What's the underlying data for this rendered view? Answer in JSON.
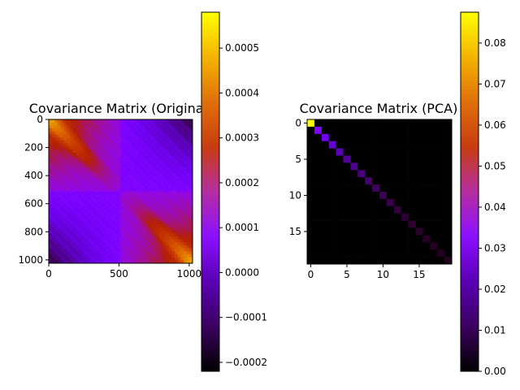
{
  "chart_data": [
    {
      "type": "heatmap",
      "title": "Covariance Matrix (Original)",
      "shape": [
        1024,
        1024
      ],
      "xticks": [
        0,
        500,
        1000
      ],
      "yticks": [
        0,
        200,
        400,
        600,
        800,
        1000
      ],
      "description_values": {
        "block_structure": "two positively correlated diagonal blocks (0-500, 500-1024), negative off-diagonal blocks",
        "diag_peak_corners": true
      },
      "colormap": "gnuplot",
      "colorbar": {
        "vmin": -0.00022,
        "vmax": 0.00058,
        "ticks": [
          -0.0002,
          -0.0001,
          0.0,
          0.0001,
          0.0002,
          0.0003,
          0.0004,
          0.0005
        ],
        "tick_labels": [
          "−0.0002",
          "−0.0001",
          "0.0000",
          "0.0001",
          "0.0002",
          "0.0003",
          "0.0004",
          "0.0005"
        ]
      }
    },
    {
      "type": "heatmap",
      "title": "Covariance Matrix (PCA)",
      "shape": [
        20,
        20
      ],
      "xticks": [
        0,
        5,
        10,
        15
      ],
      "yticks": [
        0,
        5,
        10,
        15
      ],
      "diagonal": [
        0.088,
        0.022,
        0.017,
        0.014,
        0.011,
        0.009,
        0.008,
        0.007,
        0.006,
        0.005,
        0.0045,
        0.004,
        0.0035,
        0.003,
        0.0027,
        0.0024,
        0.0021,
        0.0019,
        0.0017,
        0.0015
      ],
      "off_diagonal": 0,
      "colormap": "gnuplot",
      "colorbar": {
        "vmin": 0.0,
        "vmax": 0.0875,
        "ticks": [
          0.0,
          0.01,
          0.02,
          0.03,
          0.04,
          0.05,
          0.06,
          0.07,
          0.08
        ],
        "tick_labels": [
          "0.00",
          "0.01",
          "0.02",
          "0.03",
          "0.04",
          "0.05",
          "0.06",
          "0.07",
          "0.08"
        ]
      }
    }
  ]
}
